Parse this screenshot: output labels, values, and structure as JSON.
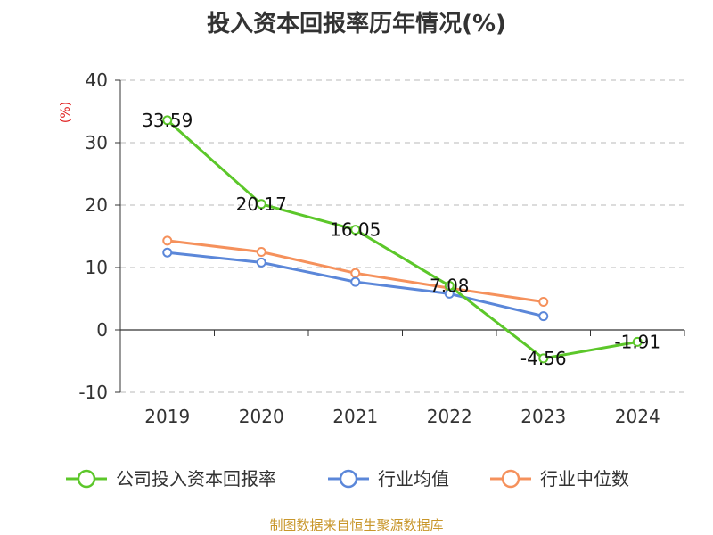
{
  "chart_data": {
    "type": "line",
    "title": "投入资本回报率历年情况(%)",
    "ylabel": "(%)",
    "categories": [
      "2019",
      "2020",
      "2021",
      "2022",
      "2023",
      "2024"
    ],
    "ylim": [
      -10,
      40
    ],
    "yticks": [
      "-10",
      "0",
      "10",
      "20",
      "30",
      "40"
    ],
    "grid": true,
    "legend_position": "bottom",
    "series": [
      {
        "name": "公司投入资本回报率",
        "color": "#5cc72a",
        "values": [
          33.59,
          20.17,
          16.05,
          7.08,
          -4.56,
          -1.91
        ],
        "labels": [
          "33.59",
          "20.17",
          "16.05",
          "7.08",
          "-4.56",
          "-1.91"
        ]
      },
      {
        "name": "行业均值",
        "color": "#5b87d9",
        "values": [
          12.4,
          10.8,
          7.7,
          5.8,
          2.2,
          null
        ]
      },
      {
        "name": "行业中位数",
        "color": "#f5915c",
        "values": [
          14.3,
          12.5,
          9.1,
          6.7,
          4.5,
          null
        ]
      }
    ]
  },
  "footer": "制图数据来自恒生聚源数据库"
}
